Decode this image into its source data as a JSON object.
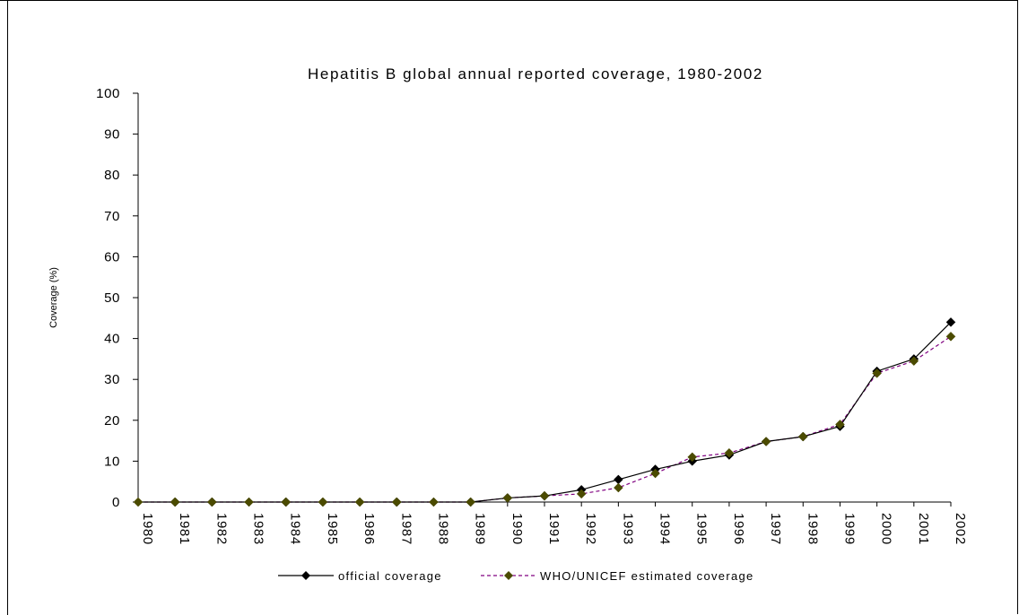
{
  "chart_data": {
    "type": "line",
    "title": "Hepatitis B global annual reported coverage, 1980-2002",
    "xlabel": "",
    "ylabel": "Coverage (%)",
    "ylim": [
      0,
      100
    ],
    "yticks": [
      "0",
      "10",
      "20",
      "30",
      "40",
      "50",
      "60",
      "70",
      "80",
      "90",
      "100"
    ],
    "categories": [
      "1980",
      "1981",
      "1982",
      "1983",
      "1984",
      "1985",
      "1986",
      "1987",
      "1988",
      "1989",
      "1990",
      "1991",
      "1992",
      "1993",
      "1994",
      "1995",
      "1996",
      "1997",
      "1998",
      "1999",
      "2000",
      "2001",
      "2002"
    ],
    "series": [
      {
        "name": "official coverage",
        "color": "#000000",
        "marker_color": "#000000",
        "line_style": "solid",
        "values": [
          0,
          0,
          0,
          0,
          0,
          0,
          0,
          0,
          0,
          0,
          1,
          1.5,
          3,
          5.5,
          8,
          10,
          11.5,
          14.8,
          16,
          18.5,
          32,
          35,
          44
        ]
      },
      {
        "name": "WHO/UNICEF estimated coverage",
        "color": "#800080",
        "marker_color": "#4b4b00",
        "line_style": "dashed",
        "values": [
          0,
          0,
          0,
          0,
          0,
          0,
          0,
          0,
          0,
          0,
          1,
          1.5,
          2,
          3.5,
          7,
          11,
          12,
          14.8,
          16,
          19,
          31.5,
          34.5,
          40.5
        ]
      }
    ],
    "grid": false,
    "legend_position": "bottom"
  }
}
